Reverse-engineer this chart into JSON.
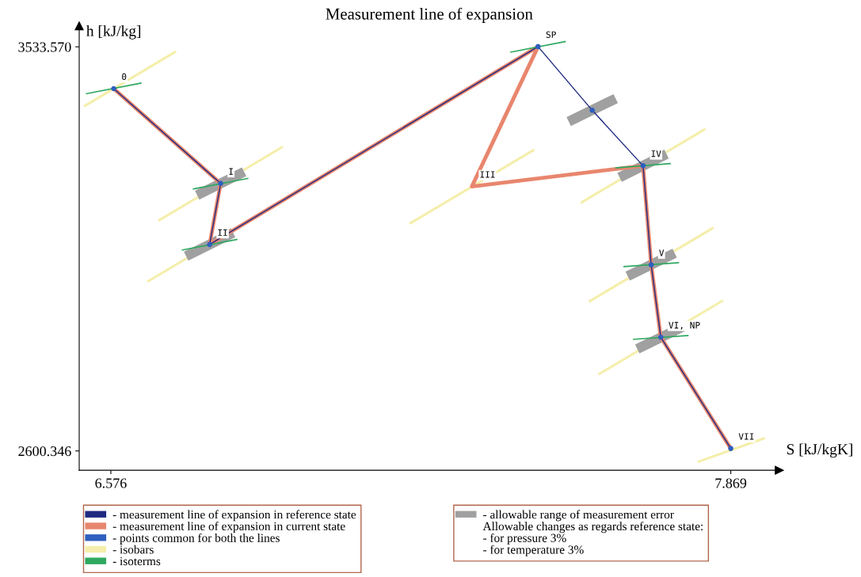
{
  "chart_data": {
    "type": "line",
    "title": "Measurement line of expansion",
    "xlabel": "S [kJ/kgK]",
    "ylabel": "h [kJ/kg]",
    "xlim": [
      6.51,
      7.97
    ],
    "ylim": [
      2555.7,
      3581.7
    ],
    "xticks": [
      6.576,
      7.869
    ],
    "yticks": [
      2600.346,
      {
        "value": 3533.57,
        "label": "3533.570"
      }
    ],
    "grid": false,
    "legend": "bottom",
    "series": [
      {
        "name": "- isobars",
        "color": "#f5eeaa",
        "x": [
          6.52,
          6.712,
          null,
          6.675,
          6.935,
          null,
          6.652,
          6.912,
          null,
          7.199,
          7.459,
          null,
          7.556,
          7.816,
          null,
          7.573,
          7.833,
          null,
          7.593,
          7.853,
          null,
          7.8,
          7.94
        ],
        "values": [
          3396,
          3523,
          null,
          3132,
          3303,
          null,
          2991,
          3162,
          null,
          3125,
          3296,
          null,
          3173,
          3344,
          null,
          2945,
          3116,
          null,
          2777,
          2948,
          null,
          2575,
          2630
        ]
      },
      {
        "name": "- allowable range of measurement error",
        "color": "#a0a0a0",
        "x": [
          6.756,
          6.854,
          null,
          6.733,
          6.831,
          null,
          7.531,
          7.629,
          null,
          7.637,
          7.735,
          null,
          7.654,
          7.752,
          null,
          7.674,
          7.772
        ],
        "values": [
          3191,
          3245,
          null,
          3050,
          3104,
          null,
          3361,
          3414,
          null,
          3232,
          3286,
          null,
          3004,
          3057,
          null,
          2836,
          2889
        ]
      },
      {
        "name": "- isoterms",
        "color": "#2fa860",
        "x": [
          6.524,
          6.64,
          null,
          6.747,
          6.863,
          null,
          6.724,
          6.84,
          null,
          7.409,
          7.525,
          null,
          7.628,
          7.744,
          null,
          7.645,
          7.761,
          null,
          7.665,
          7.781
        ],
        "values": [
          3425,
          3450,
          null,
          3205,
          3230,
          null,
          3064,
          3089,
          null,
          3521,
          3546,
          null,
          3254,
          3264,
          null,
          3026,
          3035,
          null,
          2858,
          2867
        ]
      },
      {
        "name": "- measurement line of expansion in current state",
        "color": "#e8866e",
        "x": [
          6.582,
          6.805,
          6.782,
          7.467,
          7.329,
          7.686,
          7.703,
          7.723,
          7.869
        ],
        "values": [
          3437,
          3218,
          3077,
          3534,
          3211,
          3259,
          3030,
          2863,
          2606
        ]
      },
      {
        "name": "- measurement line of expansion in reference state",
        "color": "#1f2a80",
        "x": [
          6.582,
          6.805,
          6.782,
          7.467,
          7.58,
          7.686,
          7.703,
          7.723,
          7.869
        ],
        "values": [
          3437,
          3218,
          3077,
          3534,
          3387,
          3259,
          3030,
          2863,
          2606
        ]
      },
      {
        "name": "- points common for both the lines",
        "type": "scatter",
        "marker": "circle",
        "color": "#2f5fbf",
        "x": [
          6.582,
          6.805,
          6.782,
          7.467,
          7.58,
          7.686,
          7.703,
          7.723,
          7.869
        ],
        "values": [
          3437,
          3218,
          3077,
          3534,
          3387,
          3259,
          3030,
          2863,
          2606
        ]
      }
    ],
    "annotations": [
      {
        "text": "0",
        "x": 6.582,
        "y": 3437
      },
      {
        "text": "I",
        "x": 6.805,
        "y": 3218
      },
      {
        "text": "II",
        "x": 6.782,
        "y": 3077
      },
      {
        "text": "SP",
        "x": 7.467,
        "y": 3534
      },
      {
        "text": "III",
        "x": 7.329,
        "y": 3211
      },
      {
        "text": "IV",
        "x": 7.686,
        "y": 3259
      },
      {
        "text": "V",
        "x": 7.703,
        "y": 3030
      },
      {
        "text": "VI, NP",
        "x": 7.723,
        "y": 2863
      },
      {
        "text": "VII",
        "x": 7.869,
        "y": 2606
      },
      "Allowable changes as regards reference state:",
      "- for pressure 3%",
      "- for temperature 3%"
    ]
  }
}
